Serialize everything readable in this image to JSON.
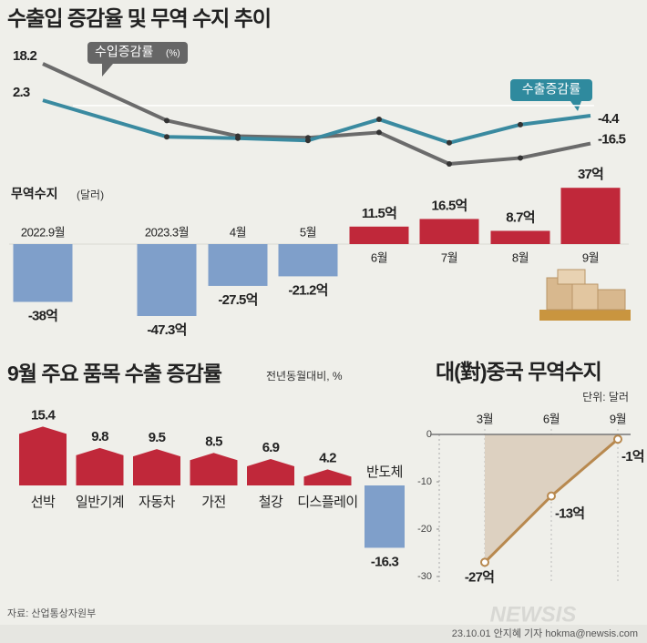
{
  "chart_data": [
    {
      "type": "combo",
      "title": "수출입 증감율 및 무역 수지 추이",
      "categories": [
        "2022.9월",
        "2023.3월",
        "4월",
        "5월",
        "6월",
        "7월",
        "8월",
        "9월"
      ],
      "series": [
        {
          "name": "수입증감률",
          "unit": "(%)",
          "type": "line",
          "color": "#6b6b6b",
          "values": [
            18.2,
            -6.5,
            -13.3,
            -14.0,
            -11.7,
            -25.4,
            -22.8,
            -16.5
          ]
        },
        {
          "name": "수출증감률",
          "type": "line",
          "color": "#3a8aa0",
          "values": [
            2.3,
            -13.6,
            -14.2,
            -15.2,
            -6.0,
            -16.2,
            -8.3,
            -4.4
          ]
        },
        {
          "name": "무역수지",
          "unit": "(달러)",
          "type": "bar",
          "color": "#c0283a",
          "negative_color": "#7f9fca",
          "values": [
            -38,
            -47.3,
            -27.5,
            -21.2,
            11.5,
            16.5,
            8.7,
            37
          ],
          "value_labels": [
            "-38억",
            "-47.3억",
            "-27.5억",
            "-21.2억",
            "11.5억",
            "16.5억",
            "8.7억",
            "37억"
          ]
        }
      ]
    },
    {
      "type": "bar",
      "title": "9월 주요 품목 수출 증감률",
      "subtitle": "전년동월대비, %",
      "categories": [
        "선박",
        "일반기계",
        "자동차",
        "가전",
        "철강",
        "디스플레이",
        "반도체"
      ],
      "values": [
        15.4,
        9.8,
        9.5,
        8.5,
        6.9,
        4.2,
        -16.3
      ],
      "color": "#c0283a",
      "negative_color": "#7f9fca"
    },
    {
      "type": "area",
      "title": "대(對)중국 무역수지",
      "subtitle": "단위: 달러",
      "categories": [
        "3월",
        "6월",
        "9월"
      ],
      "values": [
        -27,
        -13,
        -1
      ],
      "value_labels": [
        "-27억",
        "-13억",
        "-1억"
      ],
      "color": "#b8894f",
      "fill": "#ddd1c1",
      "ylim": [
        -30,
        0
      ],
      "yticks": [
        0,
        -10,
        -20,
        -30
      ]
    }
  ],
  "source": "자료: 산업통상자원부",
  "credit": "23.10.01 안지혜 기자 hokma@newsis.com",
  "logo": "NEWSIS"
}
